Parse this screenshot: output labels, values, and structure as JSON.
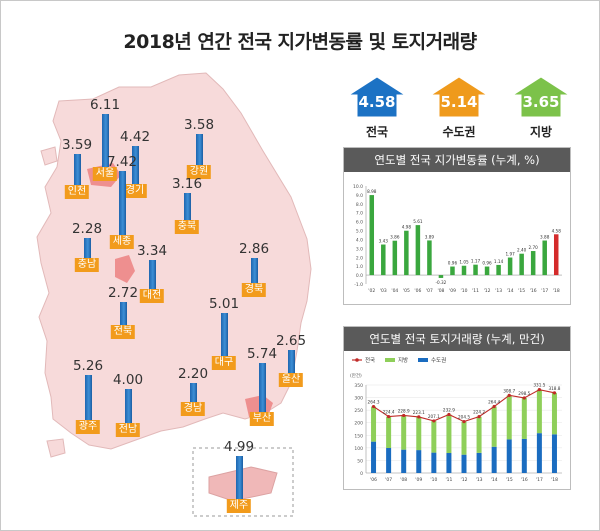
{
  "title": "2018년 연간 전국 지가변동률 및 토지거래량",
  "summary": [
    {
      "label": "전국",
      "value": "4.58",
      "color": "#1c72c4"
    },
    {
      "label": "수도권",
      "value": "5.14",
      "color": "#ef9a1c"
    },
    {
      "label": "지방",
      "value": "3.65",
      "color": "#7cc24a"
    }
  ],
  "regions": [
    {
      "name": "서울",
      "value": "6.11",
      "highlight": true
    },
    {
      "name": "인천",
      "value": "3.59"
    },
    {
      "name": "경기",
      "value": "4.42"
    },
    {
      "name": "강원",
      "value": "3.58"
    },
    {
      "name": "세종",
      "value": "7.42",
      "highlight": true
    },
    {
      "name": "충북",
      "value": "3.16"
    },
    {
      "name": "충남",
      "value": "2.28"
    },
    {
      "name": "대전",
      "value": "3.34"
    },
    {
      "name": "경북",
      "value": "2.86"
    },
    {
      "name": "전북",
      "value": "2.72"
    },
    {
      "name": "대구",
      "value": "5.01"
    },
    {
      "name": "울산",
      "value": "2.65"
    },
    {
      "name": "광주",
      "value": "5.26"
    },
    {
      "name": "전남",
      "value": "4.00"
    },
    {
      "name": "경남",
      "value": "2.20"
    },
    {
      "name": "부산",
      "value": "5.74",
      "highlight": true
    },
    {
      "name": "제주",
      "value": "4.99"
    }
  ],
  "chart_data": [
    {
      "type": "bar",
      "title": "연도별 전국 지가변동률 (누계, %)",
      "categories": [
        "'02",
        "'03",
        "'04",
        "'05",
        "'06",
        "'07",
        "'08",
        "'09",
        "'10",
        "'11",
        "'12",
        "'13",
        "'14",
        "'15",
        "'16",
        "'17",
        "'18"
      ],
      "values": [
        8.98,
        3.43,
        3.86,
        4.98,
        5.61,
        3.89,
        -0.32,
        0.96,
        1.05,
        1.17,
        0.96,
        1.14,
        1.97,
        2.4,
        2.7,
        3.88,
        4.58
      ],
      "value_labels": [
        "8.98",
        "3.43",
        "3.86",
        "4.98",
        "5.61",
        "3.89",
        "-0.32",
        "0.96",
        "1.05",
        "1.17",
        "0.96",
        "1.14",
        "1.97",
        "2.40",
        "2.70",
        "3.88",
        "4.58"
      ],
      "highlight_last": true,
      "ylim": [
        -1,
        10
      ],
      "yticks": [
        "10.0",
        "9.0",
        "8.0",
        "7.0",
        "6.0",
        "5.0",
        "4.0",
        "3.0",
        "2.0",
        "1.0",
        "0.0",
        "-1.0"
      ],
      "grid": false
    },
    {
      "type": "bar",
      "title": "연도별 전국 토지거래량 (누계, 만건)",
      "ylabel": "(만건)",
      "categories": [
        "'06",
        "'07",
        "'08",
        "'09",
        "'10",
        "'11",
        "'12",
        "'13",
        "'14",
        "'15",
        "'16",
        "'17",
        "'18"
      ],
      "stacked": true,
      "series": [
        {
          "name": "수도권",
          "color": "#1a6cc0",
          "values": [
            124.7,
            99.4,
            92.9,
            91.1,
            81.1,
            79.5,
            72.9,
            80.1,
            104.4,
            133.7,
            135.5,
            158.5,
            153.8
          ]
        },
        {
          "name": "지방",
          "color": "#8fcf5a",
          "values": [
            139.6,
            125.0,
            136.0,
            132.0,
            126.0,
            153.4,
            131.6,
            144.1,
            160.0,
            175.0,
            163.0,
            173.0,
            165.0
          ]
        },
        {
          "name": "전국",
          "color": "#c02a28",
          "type": "line",
          "values": [
            264.3,
            224.4,
            228.9,
            223.1,
            207.1,
            232.9,
            204.5,
            224.2,
            264.4,
            308.7,
            298.5,
            331.5,
            318.8
          ]
        }
      ],
      "total_labels": [
        "264.3",
        "224.4",
        "228.9",
        "223.1",
        "207.1",
        "232.9",
        "204.5",
        "224.2",
        "264.4",
        "308.7",
        "298.5",
        "331.5",
        "318.8"
      ],
      "ylim": [
        0,
        350
      ],
      "yticks": [
        "350",
        "300",
        "250",
        "200",
        "150",
        "100",
        "50",
        "0"
      ],
      "legend": "top-left"
    }
  ]
}
